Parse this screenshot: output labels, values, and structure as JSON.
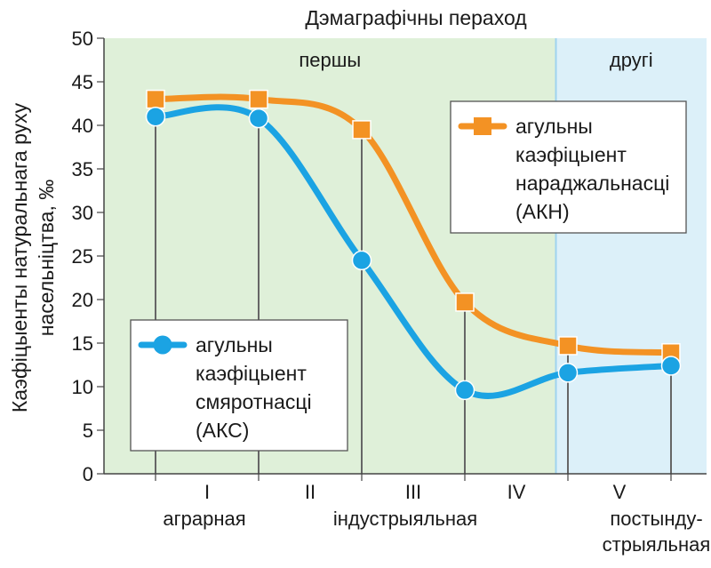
{
  "chart_data": {
    "type": "line",
    "title": "Дэмаграфічны пераход",
    "ylabel": "Каэфіцыенты натуральнага руху насельніцтва, ‰",
    "ylim": [
      0,
      50
    ],
    "yticks": [
      0,
      5,
      10,
      15,
      20,
      25,
      30,
      35,
      40,
      45,
      50
    ],
    "phases": [
      {
        "label": "першы",
        "from": 0,
        "to": 4.5,
        "color": "#dff0d9"
      },
      {
        "label": "другі",
        "from": 4.5,
        "to": 6,
        "color": "#dcf0f9"
      }
    ],
    "stage_numerals": [
      "I",
      "II",
      "III",
      "IV",
      "V"
    ],
    "stage_names": [
      {
        "text": "аграрная",
        "lines": [
          "аграрная"
        ],
        "x": 1
      },
      {
        "text": "індустрыяльная",
        "lines": [
          "індустрыяльная"
        ],
        "x": 3
      },
      {
        "text": "постындустрыяльная",
        "lines": [
          "постынду-",
          "стрыяльная"
        ],
        "x": 5.5
      }
    ],
    "x": [
      1,
      2,
      3,
      4,
      5,
      6
    ],
    "series": [
      {
        "name": "агульны каэфіцыент нараджальнасці (АКН)",
        "legend_lines": [
          "агульны",
          "каэфіцыент",
          "нараджальнасці",
          "(АКН)"
        ],
        "color": "#f39224",
        "marker": "square",
        "values": [
          43,
          43,
          39.5,
          19.7,
          14.7,
          13.9
        ]
      },
      {
        "name": "агульны каэфіцыент смяротнасці (АКС)",
        "legend_lines": [
          "агульны",
          "каэфіцыент",
          "смяротнасці",
          "(АКС)"
        ],
        "color": "#1ba3e3",
        "marker": "circle",
        "values": [
          41,
          40.8,
          24.5,
          9.6,
          11.6,
          12.4
        ]
      }
    ],
    "grid": false,
    "legend": "inside"
  }
}
